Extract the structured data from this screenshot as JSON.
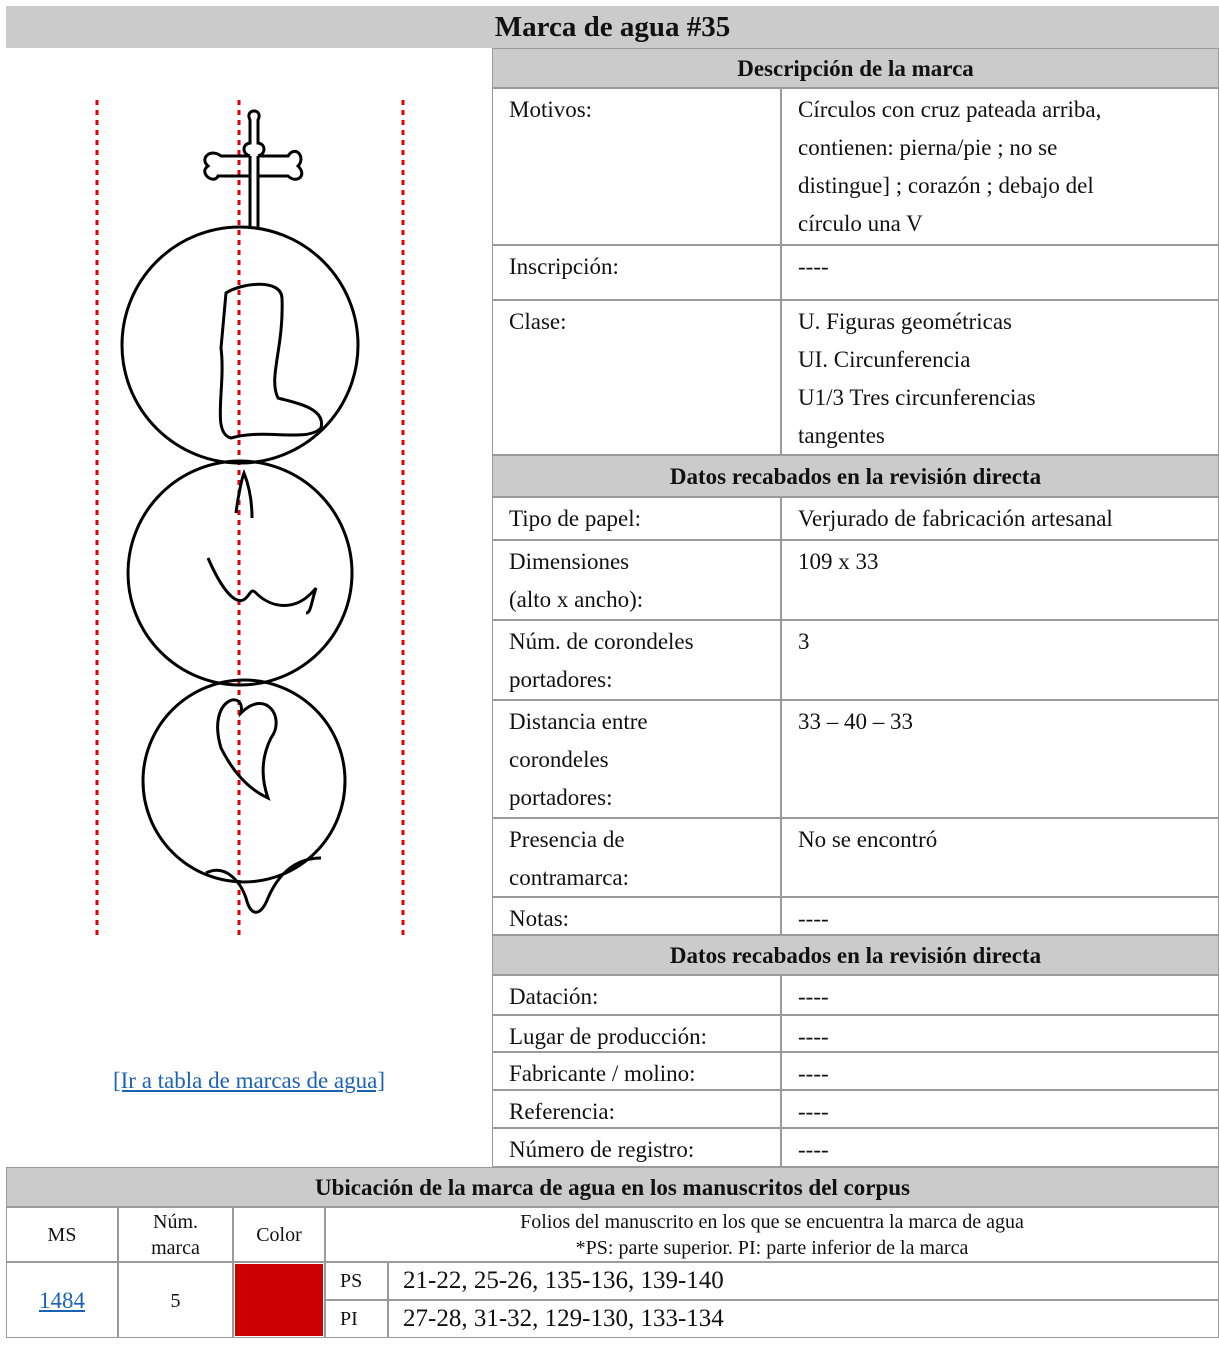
{
  "title": "Marca de agua #35",
  "link": "[Ir a tabla de marcas de agua]",
  "sections": [
    {
      "header": "Descripción de la marca",
      "rows": [
        {
          "label": [
            "Motivos:"
          ],
          "value": [
            "Círculos con cruz pateada arriba,",
            "contienen: pierna/pie ;  no se",
            "distingue] ; corazón ; debajo del",
            "círculo una V"
          ]
        },
        {
          "label": [
            "Inscripción:"
          ],
          "value": [
            "----"
          ]
        },
        {
          "label": [
            "Clase:"
          ],
          "value": [
            "U. Figuras geométricas",
            "UI. Circunferencia",
            "U1/3 Tres circunferencias",
            "tangentes"
          ]
        }
      ]
    },
    {
      "header": "Datos recabados en la revisión directa",
      "rows": [
        {
          "label": [
            "Tipo de papel:"
          ],
          "value": [
            "Verjurado de fabricación artesanal"
          ]
        },
        {
          "label": [
            "Dimensiones",
            "(alto x ancho):"
          ],
          "value": [
            "109 x 33"
          ]
        },
        {
          "label": [
            "Núm. de corondeles",
            "portadores:"
          ],
          "value": [
            "3"
          ]
        },
        {
          "label": [
            "Distancia entre",
            "corondeles",
            "portadores:"
          ],
          "value": [
            "33 – 40 – 33"
          ]
        },
        {
          "label": [
            "Presencia de",
            "contramarca:"
          ],
          "value": [
            "No se encontró"
          ]
        },
        {
          "label": [
            "Notas:"
          ],
          "value": [
            "----"
          ]
        }
      ]
    },
    {
      "header": "Datos recabados en la revisión directa",
      "rows": [
        {
          "label": [
            "Datación:"
          ],
          "value": [
            "----"
          ]
        },
        {
          "label": [
            "Lugar de producción:"
          ],
          "value": [
            "----"
          ]
        },
        {
          "label": [
            "Fabricante / molino:"
          ],
          "value": [
            "----"
          ]
        },
        {
          "label": [
            "Referencia:"
          ],
          "value": [
            "----"
          ]
        },
        {
          "label": [
            "Número de registro:"
          ],
          "value": [
            "----"
          ]
        }
      ]
    }
  ],
  "location": {
    "header": "Ubicación de la marca de agua en los manuscritos del corpus",
    "columns": {
      "ms": [
        "MS"
      ],
      "num": [
        "Núm.",
        "marca"
      ],
      "color": [
        "Color"
      ],
      "folios": [
        "Folios del manuscrito en los que se encuentra la marca de agua",
        "*PS: parte superior. PI: parte inferior de la marca"
      ]
    },
    "rows": [
      {
        "ms": "1484",
        "num": "5",
        "color": "#cc0000",
        "parts": [
          {
            "part": "PS",
            "folios": "21-22, 25-26, 135-136, 139-140"
          },
          {
            "part": "PI",
            "folios": "27-28, 31-32, 129-130, 133-134"
          }
        ]
      }
    ]
  }
}
